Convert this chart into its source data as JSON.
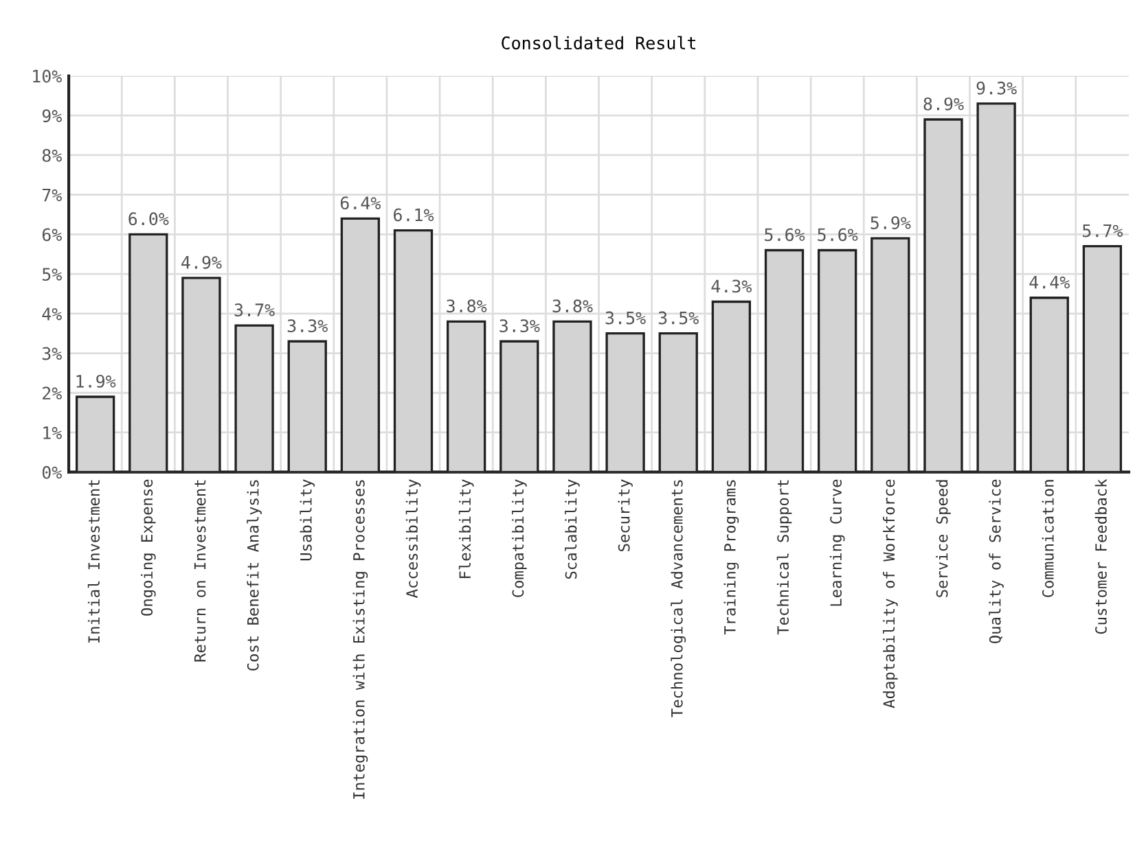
{
  "chart_data": {
    "type": "bar",
    "title": "Consolidated Result",
    "categories": [
      "Initial Investment",
      "Ongoing Expense",
      "Return on Investment",
      "Cost Benefit Analysis",
      "Usability",
      "Integration with Existing Processes",
      "Accessibility",
      "Flexibility",
      "Compatibility",
      "Scalability",
      "Security",
      "Technological Advancements",
      "Training Programs",
      "Technical Support",
      "Learning Curve",
      "Adaptability of Workforce",
      "Service Speed",
      "Quality of Service",
      "Communication",
      "Customer Feedback"
    ],
    "values": [
      1.9,
      6.0,
      4.9,
      3.7,
      3.3,
      6.4,
      6.1,
      3.8,
      3.3,
      3.8,
      3.5,
      3.5,
      4.3,
      5.6,
      5.6,
      5.9,
      8.9,
      9.3,
      4.4,
      5.7
    ],
    "value_labels": [
      "1.9%",
      "6.0%",
      "4.9%",
      "3.7%",
      "3.3%",
      "6.4%",
      "6.1%",
      "3.8%",
      "3.3%",
      "3.8%",
      "3.5%",
      "3.5%",
      "4.3%",
      "5.6%",
      "5.6%",
      "5.9%",
      "8.9%",
      "9.3%",
      "4.4%",
      "5.7%"
    ],
    "color": "#d3d3d3",
    "ylim": [
      0,
      10
    ],
    "yticks": [
      {
        "value": 0,
        "label": "0%"
      },
      {
        "value": 1,
        "label": "1%"
      },
      {
        "value": 2,
        "label": "2%"
      },
      {
        "value": 3,
        "label": "3%"
      },
      {
        "value": 4,
        "label": "4%"
      },
      {
        "value": 5,
        "label": "5%"
      },
      {
        "value": 6,
        "label": "6%"
      },
      {
        "value": 7,
        "label": "7%"
      },
      {
        "value": 8,
        "label": "8%"
      },
      {
        "value": 9,
        "label": "9%"
      },
      {
        "value": 10,
        "label": "10%"
      }
    ],
    "grid": true
  }
}
